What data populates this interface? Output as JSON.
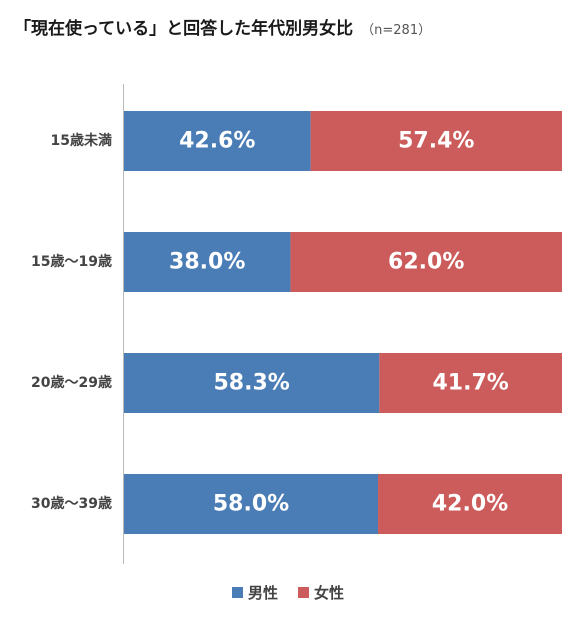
{
  "header": {
    "title": "「現在使っている」と回答した年代別男女比",
    "subtitle": "（n=281）"
  },
  "colors": {
    "male": "#4a7db5",
    "female": "#cc5c5c",
    "axis": "#bbbbbb"
  },
  "legend": {
    "male_label": "男性",
    "female_label": "女性"
  },
  "chart_data": {
    "type": "bar",
    "orientation": "horizontal",
    "stacked": true,
    "percent_stacked": true,
    "categories": [
      "15歳未満",
      "15歳～19歳",
      "20歳～29歳",
      "30歳～39歳"
    ],
    "series": [
      {
        "name": "男性",
        "values": [
          42.6,
          38.0,
          58.3,
          58.0
        ],
        "labels": [
          "42.6%",
          "38.0%",
          "58.3%",
          "58.0%"
        ]
      },
      {
        "name": "女性",
        "values": [
          57.4,
          62.0,
          41.7,
          42.0
        ],
        "labels": [
          "57.4%",
          "62.0%",
          "41.7%",
          "42.0%"
        ]
      }
    ],
    "xlim": [
      0,
      100
    ],
    "grid": false,
    "legend_position": "bottom"
  }
}
